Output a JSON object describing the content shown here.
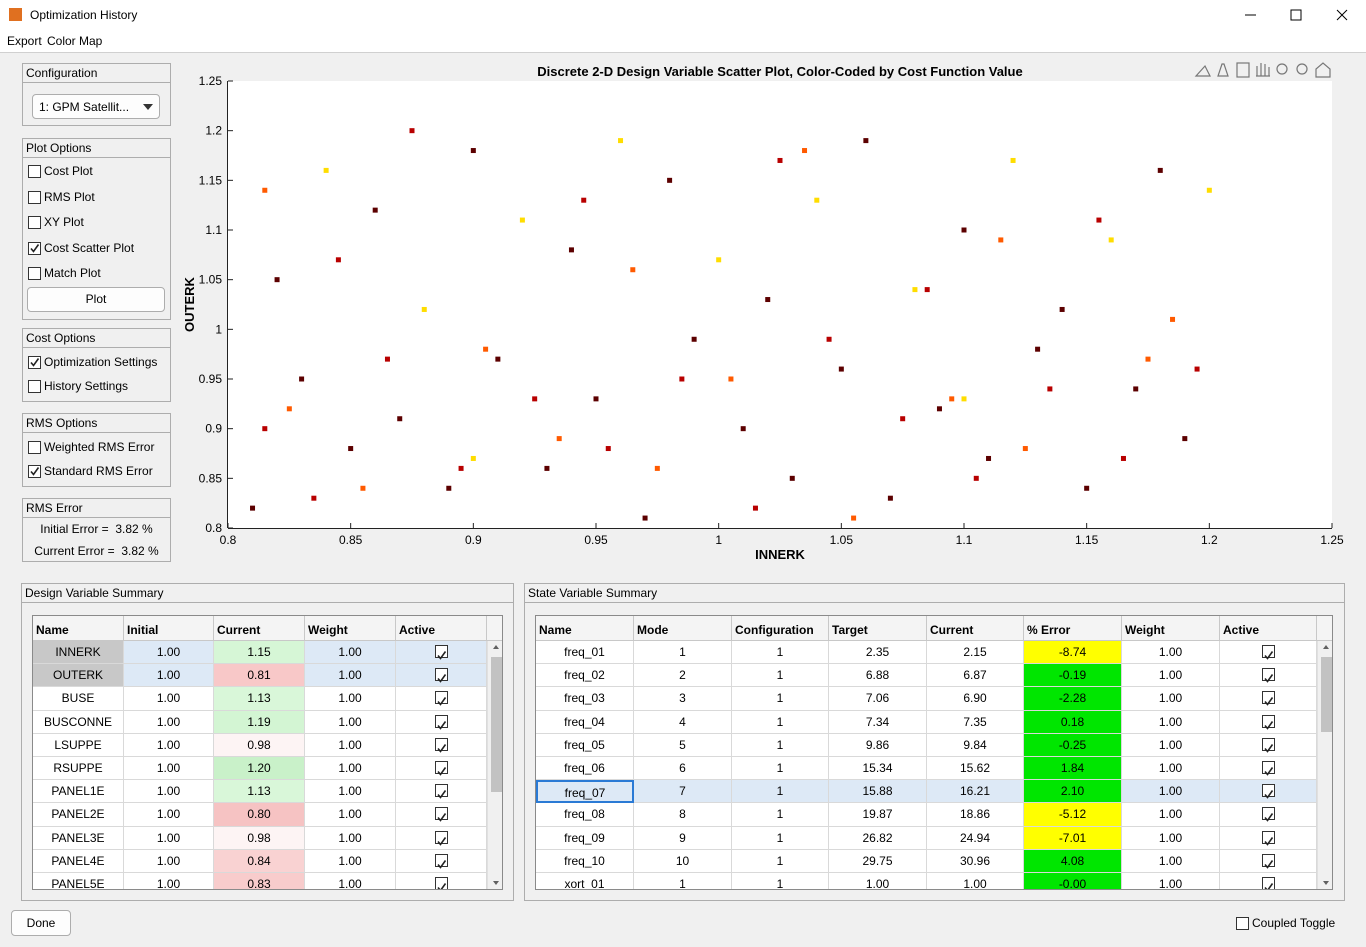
{
  "window": {
    "title": "Optimization History",
    "menu": [
      "Export",
      "Color Map"
    ]
  },
  "configuration": {
    "title": "Configuration",
    "selected": "1: GPM Satellit..."
  },
  "plot_options": {
    "title": "Plot Options",
    "checkboxes": [
      {
        "label": "Cost Plot",
        "checked": false
      },
      {
        "label": "RMS Plot",
        "checked": false
      },
      {
        "label": "XY Plot",
        "checked": false
      },
      {
        "label": "Cost Scatter Plot",
        "checked": true
      },
      {
        "label": "Match Plot",
        "checked": false
      }
    ],
    "button": "Plot"
  },
  "cost_options": {
    "title": "Cost Options",
    "checkboxes": [
      {
        "label": "Optimization Settings",
        "checked": true
      },
      {
        "label": "History Settings",
        "checked": false
      }
    ]
  },
  "rms_options": {
    "title": "RMS Options",
    "checkboxes": [
      {
        "label": "Weighted RMS Error",
        "checked": false
      },
      {
        "label": "Standard RMS Error",
        "checked": true
      }
    ]
  },
  "rms_error": {
    "title": "RMS Error",
    "lines": [
      "Initial Error =  3.82 %",
      "Current Error =  3.82 %"
    ]
  },
  "chart_data": {
    "type": "scatter",
    "title": "Discrete 2-D Design Variable Scatter Plot, Color-Coded by Cost Function Value",
    "xlabel": "INNERK",
    "ylabel": "OUTERK",
    "xlim": [
      0.8,
      1.25
    ],
    "ylim": [
      0.8,
      1.25
    ],
    "xticks": [
      0.8,
      0.85,
      0.9,
      0.95,
      1,
      1.05,
      1.1,
      1.15,
      1.2,
      1.25
    ],
    "yticks": [
      0.8,
      0.85,
      0.9,
      0.95,
      1,
      1.05,
      1.1,
      1.15,
      1.2,
      1.25
    ],
    "series": [
      {
        "color": "#5c0000",
        "x": [
          0.81,
          0.83,
          0.85,
          0.87,
          0.89,
          0.91,
          0.93,
          0.95,
          0.97,
          0.99,
          1.01,
          1.03,
          1.05,
          1.07,
          1.09,
          1.11,
          1.13,
          1.15,
          1.17,
          1.19,
          0.82,
          0.86,
          0.9,
          0.94,
          0.98,
          1.02,
          1.06,
          1.1,
          1.14,
          1.18
        ],
        "y": [
          0.82,
          0.95,
          0.88,
          0.91,
          0.84,
          0.97,
          0.86,
          0.93,
          0.81,
          0.99,
          0.9,
          0.85,
          0.96,
          0.83,
          0.92,
          0.87,
          0.98,
          0.84,
          0.94,
          0.89,
          1.05,
          1.12,
          1.18,
          1.08,
          1.15,
          1.03,
          1.19,
          1.1,
          1.02,
          1.16
        ]
      },
      {
        "color": "#b80000",
        "x": [
          0.815,
          0.835,
          0.865,
          0.895,
          0.925,
          0.955,
          0.985,
          1.015,
          1.045,
          1.075,
          1.105,
          1.135,
          1.165,
          1.195,
          0.845,
          0.945,
          1.025,
          1.085,
          1.155,
          0.875
        ],
        "y": [
          0.9,
          0.83,
          0.97,
          0.86,
          0.93,
          0.88,
          0.95,
          0.82,
          0.99,
          0.91,
          0.85,
          0.94,
          0.87,
          0.96,
          1.07,
          1.13,
          1.17,
          1.04,
          1.11,
          1.2
        ]
      },
      {
        "color": "#ff5a00",
        "x": [
          0.825,
          0.855,
          0.905,
          0.935,
          0.975,
          1.005,
          1.055,
          1.095,
          1.125,
          1.175,
          0.815,
          0.965,
          1.035,
          1.115,
          1.185
        ],
        "y": [
          0.92,
          0.84,
          0.98,
          0.89,
          0.86,
          0.95,
          0.81,
          0.93,
          0.88,
          0.97,
          1.14,
          1.06,
          1.18,
          1.09,
          1.01
        ]
      },
      {
        "color": "#ffdd00",
        "x": [
          0.84,
          0.88,
          0.92,
          0.96,
          1.0,
          1.04,
          1.08,
          1.12,
          1.16,
          1.2,
          0.9,
          1.1
        ],
        "y": [
          1.16,
          1.02,
          1.11,
          1.19,
          1.07,
          1.13,
          1.04,
          1.17,
          1.09,
          1.14,
          0.87,
          0.93
        ]
      }
    ]
  },
  "design_table": {
    "title": "Design Variable Summary",
    "columns": [
      "Name",
      "Initial",
      "Current",
      "Weight",
      "Active"
    ],
    "rows": [
      [
        "INNERK",
        "1.00",
        "1.15",
        "1.00",
        true
      ],
      [
        "OUTERK",
        "1.00",
        "0.81",
        "1.00",
        true
      ],
      [
        "BUSE",
        "1.00",
        "1.13",
        "1.00",
        true
      ],
      [
        "BUSCONNE",
        "1.00",
        "1.19",
        "1.00",
        true
      ],
      [
        "LSUPPE",
        "1.00",
        "0.98",
        "1.00",
        true
      ],
      [
        "RSUPPE",
        "1.00",
        "1.20",
        "1.00",
        true
      ],
      [
        "PANEL1E",
        "1.00",
        "1.13",
        "1.00",
        true
      ],
      [
        "PANEL2E",
        "1.00",
        "0.80",
        "1.00",
        true
      ],
      [
        "PANEL3E",
        "1.00",
        "0.98",
        "1.00",
        true
      ],
      [
        "PANEL4E",
        "1.00",
        "0.84",
        "1.00",
        true
      ],
      [
        "PANEL5E",
        "1.00",
        "0.83",
        "1.00",
        true
      ]
    ],
    "current_colors": [
      "#d6f6d6",
      "#f8c8c8",
      "#d9f7d9",
      "#d3f5d3",
      "#fdf4f4",
      "#c9f1c9",
      "#d9f7d9",
      "#f6c3c3",
      "#fdf4f4",
      "#f9d2d2",
      "#f8cccc"
    ],
    "selected_rows": [
      0,
      1
    ]
  },
  "state_table": {
    "title": "State Variable Summary",
    "columns": [
      "Name",
      "Mode",
      "Configuration",
      "Target",
      "Current",
      "% Error",
      "Weight",
      "Active"
    ],
    "rows": [
      [
        "freq_01",
        "1",
        "1",
        "2.35",
        "2.15",
        "-8.74",
        "1.00",
        true
      ],
      [
        "freq_02",
        "2",
        "1",
        "6.88",
        "6.87",
        "-0.19",
        "1.00",
        true
      ],
      [
        "freq_03",
        "3",
        "1",
        "7.06",
        "6.90",
        "-2.28",
        "1.00",
        true
      ],
      [
        "freq_04",
        "4",
        "1",
        "7.34",
        "7.35",
        "0.18",
        "1.00",
        true
      ],
      [
        "freq_05",
        "5",
        "1",
        "9.86",
        "9.84",
        "-0.25",
        "1.00",
        true
      ],
      [
        "freq_06",
        "6",
        "1",
        "15.34",
        "15.62",
        "1.84",
        "1.00",
        true
      ],
      [
        "freq_07",
        "7",
        "1",
        "15.88",
        "16.21",
        "2.10",
        "1.00",
        true
      ],
      [
        "freq_08",
        "8",
        "1",
        "19.87",
        "18.86",
        "-5.12",
        "1.00",
        true
      ],
      [
        "freq_09",
        "9",
        "1",
        "26.82",
        "24.94",
        "-7.01",
        "1.00",
        true
      ],
      [
        "freq_10",
        "10",
        "1",
        "29.75",
        "30.96",
        "4.08",
        "1.00",
        true
      ],
      [
        "xort_01",
        "1",
        "1",
        "1.00",
        "1.00",
        "-0.00",
        "1.00",
        true
      ]
    ],
    "error_colors": [
      "#ffff00",
      "#00e600",
      "#00e600",
      "#00e600",
      "#00e600",
      "#00e600",
      "#00e600",
      "#ffff00",
      "#ffff00",
      "#00e600",
      "#00e600"
    ],
    "selected_rows": [
      6
    ]
  },
  "footer": {
    "button": "Done",
    "toggle": {
      "label": "Coupled Toggle",
      "checked": false
    }
  }
}
